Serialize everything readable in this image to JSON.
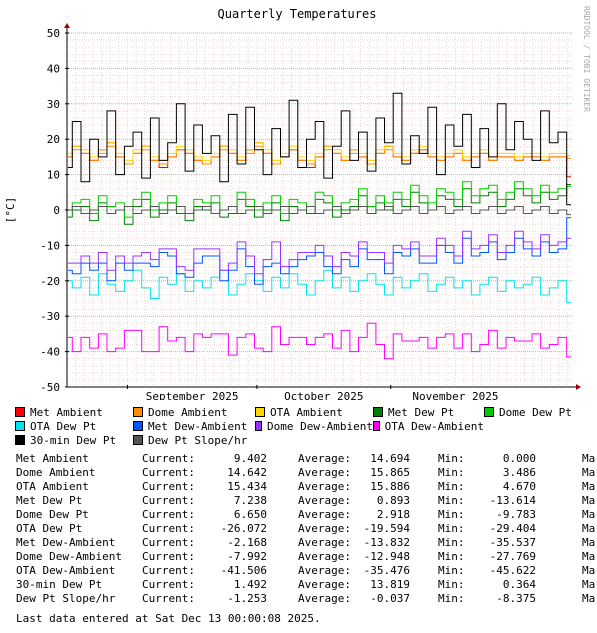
{
  "chart_data": {
    "type": "line",
    "title": "Quarterly Temperatures",
    "ylabel": "[°C]",
    "xlabel": "",
    "ylim": [
      -50,
      50
    ],
    "yticks": [
      50,
      40,
      30,
      20,
      10,
      0,
      -10,
      -20,
      -30,
      -40,
      -50
    ],
    "x_tick_labels": [
      "September 2025",
      "October 2025",
      "November 2025"
    ],
    "x_tick_dates": [
      "2025-09-01",
      "2025-10-01",
      "2025-11-01"
    ],
    "x_range": [
      "2025-08-18",
      "2025-12-13"
    ],
    "grid": true,
    "series_note": "Values are approximated from the plot (sampled every 2 days).",
    "series": [
      {
        "name": "Met Ambient",
        "color": "#ff0000",
        "values": [
          15,
          18,
          16,
          14,
          17,
          19,
          15,
          13,
          16,
          18,
          14,
          12,
          15,
          17,
          16,
          14,
          13,
          15,
          18,
          16,
          14,
          17,
          19,
          16,
          13,
          15,
          17,
          14,
          12,
          15,
          18,
          16,
          14,
          17,
          15,
          13,
          16,
          18,
          15,
          14,
          16,
          17,
          15,
          14,
          15,
          16,
          14,
          15,
          16,
          14,
          15,
          15,
          14,
          15,
          15,
          14,
          15,
          15,
          9.4
        ]
      },
      {
        "name": "Dome Ambient",
        "color": "#ff8c00",
        "values": [
          15,
          17,
          16,
          14,
          16,
          18,
          15,
          13,
          16,
          17,
          14,
          13,
          15,
          17,
          16,
          14,
          13,
          15,
          17,
          16,
          14,
          16,
          18,
          16,
          13,
          15,
          17,
          14,
          13,
          15,
          17,
          16,
          14,
          16,
          15,
          13,
          16,
          17,
          15,
          14,
          16,
          17,
          15,
          14,
          15,
          16,
          14,
          15,
          16,
          14,
          15,
          15,
          14,
          15,
          15,
          14,
          15,
          15,
          14.6
        ]
      },
      {
        "name": "OTA Ambient",
        "color": "#ffd700",
        "values": [
          16,
          18,
          17,
          15,
          17,
          19,
          16,
          14,
          17,
          18,
          15,
          14,
          16,
          18,
          17,
          15,
          14,
          16,
          18,
          17,
          15,
          17,
          19,
          17,
          14,
          16,
          18,
          15,
          14,
          16,
          18,
          17,
          15,
          17,
          16,
          14,
          17,
          18,
          16,
          15,
          17,
          18,
          16,
          15,
          16,
          17,
          15,
          16,
          17,
          15,
          16,
          16,
          15,
          16,
          16,
          15,
          16,
          16,
          15.4
        ]
      },
      {
        "name": "Met Dew Pt",
        "color": "#008000",
        "values": [
          -2,
          0,
          1,
          -3,
          2,
          -1,
          0,
          -4,
          1,
          3,
          -2,
          0,
          2,
          -1,
          -3,
          1,
          0,
          2,
          -2,
          -1,
          3,
          1,
          -2,
          0,
          2,
          -3,
          1,
          0,
          -1,
          3,
          2,
          -2,
          0,
          1,
          4,
          -1,
          2,
          0,
          3,
          1,
          5,
          2,
          0,
          4,
          3,
          1,
          6,
          2,
          4,
          5,
          1,
          3,
          6,
          4,
          2,
          5,
          3,
          4,
          7.2
        ]
      },
      {
        "name": "Dome Dew Pt",
        "color": "#00cc00",
        "values": [
          0,
          2,
          3,
          -1,
          4,
          1,
          2,
          -2,
          3,
          5,
          0,
          2,
          4,
          1,
          -1,
          3,
          2,
          4,
          0,
          1,
          5,
          3,
          0,
          2,
          4,
          -1,
          3,
          2,
          1,
          5,
          4,
          0,
          2,
          3,
          6,
          1,
          4,
          2,
          5,
          3,
          7,
          4,
          2,
          6,
          5,
          3,
          8,
          4,
          6,
          7,
          3,
          5,
          8,
          6,
          4,
          7,
          5,
          6,
          6.7
        ]
      },
      {
        "name": "OTA Dew Pt",
        "color": "#00e5ee",
        "values": [
          -20,
          -22,
          -19,
          -24,
          -18,
          -21,
          -23,
          -20,
          -17,
          -22,
          -25,
          -19,
          -21,
          -18,
          -23,
          -20,
          -22,
          -19,
          -17,
          -24,
          -21,
          -18,
          -20,
          -23,
          -19,
          -22,
          -18,
          -21,
          -24,
          -20,
          -17,
          -22,
          -19,
          -23,
          -20,
          -18,
          -21,
          -24,
          -19,
          -22,
          -20,
          -18,
          -23,
          -21,
          -19,
          -22,
          -20,
          -24,
          -21,
          -19,
          -23,
          -20,
          -22,
          -21,
          -19,
          -24,
          -22,
          -20,
          -26.1
        ]
      },
      {
        "name": "Met Dew-Ambient",
        "color": "#0055ff",
        "values": [
          -17,
          -18,
          -15,
          -17,
          -15,
          -20,
          -15,
          -17,
          -15,
          -15,
          -16,
          -12,
          -13,
          -18,
          -19,
          -15,
          -13,
          -13,
          -20,
          -17,
          -11,
          -16,
          -21,
          -16,
          -15,
          -18,
          -16,
          -14,
          -13,
          -12,
          -16,
          -18,
          -14,
          -16,
          -11,
          -14,
          -14,
          -18,
          -12,
          -13,
          -11,
          -15,
          -15,
          -10,
          -12,
          -15,
          -8,
          -13,
          -12,
          -9,
          -14,
          -12,
          -8,
          -11,
          -13,
          -9,
          -12,
          -11,
          -2.2
        ]
      },
      {
        "name": "Dome Dew-Ambient",
        "color": "#9933ff",
        "values": [
          -15,
          -15,
          -13,
          -15,
          -12,
          -17,
          -13,
          -15,
          -13,
          -12,
          -14,
          -11,
          -11,
          -16,
          -17,
          -11,
          -11,
          -11,
          -17,
          -15,
          -9,
          -13,
          -18,
          -14,
          -9,
          -16,
          -14,
          -12,
          -12,
          -10,
          -13,
          -16,
          -12,
          -13,
          -9,
          -12,
          -12,
          -15,
          -10,
          -11,
          -9,
          -13,
          -13,
          -8,
          -10,
          -13,
          -6,
          -11,
          -10,
          -7,
          -12,
          -10,
          -6,
          -9,
          -11,
          -7,
          -10,
          -9,
          -8.0
        ]
      },
      {
        "name": "OTA Dew-Ambient",
        "color": "#ff00ff",
        "values": [
          -36,
          -40,
          -36,
          -39,
          -35,
          -40,
          -39,
          -34,
          -34,
          -40,
          -40,
          -33,
          -37,
          -36,
          -40,
          -35,
          -36,
          -35,
          -35,
          -41,
          -36,
          -35,
          -39,
          -40,
          -33,
          -38,
          -36,
          -36,
          -38,
          -36,
          -35,
          -39,
          -34,
          -40,
          -36,
          -32,
          -38,
          -42,
          -35,
          -37,
          -37,
          -36,
          -39,
          -36,
          -35,
          -39,
          -35,
          -40,
          -38,
          -34,
          -39,
          -36,
          -37,
          -37,
          -35,
          -39,
          -38,
          -36,
          -41.5
        ]
      },
      {
        "name": "30-min Dew Pt",
        "color": "#000000",
        "values": [
          12,
          25,
          8,
          20,
          15,
          28,
          10,
          18,
          22,
          9,
          26,
          14,
          19,
          30,
          11,
          24,
          16,
          21,
          8,
          27,
          13,
          29,
          17,
          10,
          23,
          15,
          31,
          12,
          20,
          25,
          9,
          18,
          28,
          14,
          22,
          11,
          26,
          19,
          33,
          13,
          21,
          16,
          29,
          10,
          24,
          18,
          27,
          12,
          23,
          15,
          30,
          17,
          25,
          20,
          14,
          28,
          19,
          22,
          1.5
        ]
      },
      {
        "name": "Dew Pt Slope/hr",
        "color": "#555555",
        "values": [
          0,
          1,
          -1,
          0,
          1,
          -1,
          0,
          1,
          -1,
          0,
          1,
          -1,
          0,
          1,
          -1,
          0,
          1,
          -1,
          0,
          1,
          -1,
          0,
          1,
          -1,
          0,
          1,
          -1,
          0,
          1,
          -1,
          0,
          1,
          -1,
          0,
          1,
          -1,
          0,
          1,
          -1,
          0,
          1,
          -1,
          0,
          1,
          -1,
          0,
          1,
          -1,
          0,
          1,
          -1,
          0,
          1,
          -1,
          0,
          1,
          -1,
          0,
          -1.3
        ]
      }
    ]
  },
  "watermark": "RRDTOOL / TOBI OETIKER",
  "legend": [
    [
      "Met Ambient",
      "Dome Ambient",
      "OTA Ambient",
      "Met Dew Pt",
      "Dome Dew Pt"
    ],
    [
      "OTA Dew Pt",
      "Met Dew-Ambient",
      "Dome Dew-Ambient",
      "OTA Dew-Ambient"
    ],
    [
      "30-min Dew Pt",
      "Dew Pt Slope/hr"
    ]
  ],
  "stats_labels": {
    "current": "Current:",
    "average": "Average:",
    "min": "Min:",
    "max": "Ma"
  },
  "stats": [
    {
      "name": "Met Ambient",
      "current": "9.402",
      "average": "14.694",
      "min": "0.000"
    },
    {
      "name": "Dome Ambient",
      "current": "14.642",
      "average": "15.865",
      "min": "3.486"
    },
    {
      "name": "OTA Ambient",
      "current": "15.434",
      "average": "15.886",
      "min": "4.670"
    },
    {
      "name": "Met Dew Pt",
      "current": "7.238",
      "average": "0.893",
      "min": "-13.614"
    },
    {
      "name": "Dome Dew Pt",
      "current": "6.650",
      "average": "2.918",
      "min": "-9.783"
    },
    {
      "name": "OTA Dew Pt",
      "current": "-26.072",
      "average": "-19.594",
      "min": "-29.404"
    },
    {
      "name": "Met Dew-Ambient",
      "current": "-2.168",
      "average": "-13.832",
      "min": "-35.537"
    },
    {
      "name": "Dome Dew-Ambient",
      "current": "-7.992",
      "average": "-12.948",
      "min": "-27.769"
    },
    {
      "name": "OTA Dew-Ambient",
      "current": "-41.506",
      "average": "-35.476",
      "min": "-45.622"
    },
    {
      "name": "30-min Dew Pt",
      "current": "1.492",
      "average": "13.819",
      "min": "0.364"
    },
    {
      "name": "Dew Pt Slope/hr",
      "current": "-1.253",
      "average": "-0.037",
      "min": "-8.375"
    }
  ],
  "last_data": "Last data entered at Sat Dec 13 00:00:08 2025."
}
